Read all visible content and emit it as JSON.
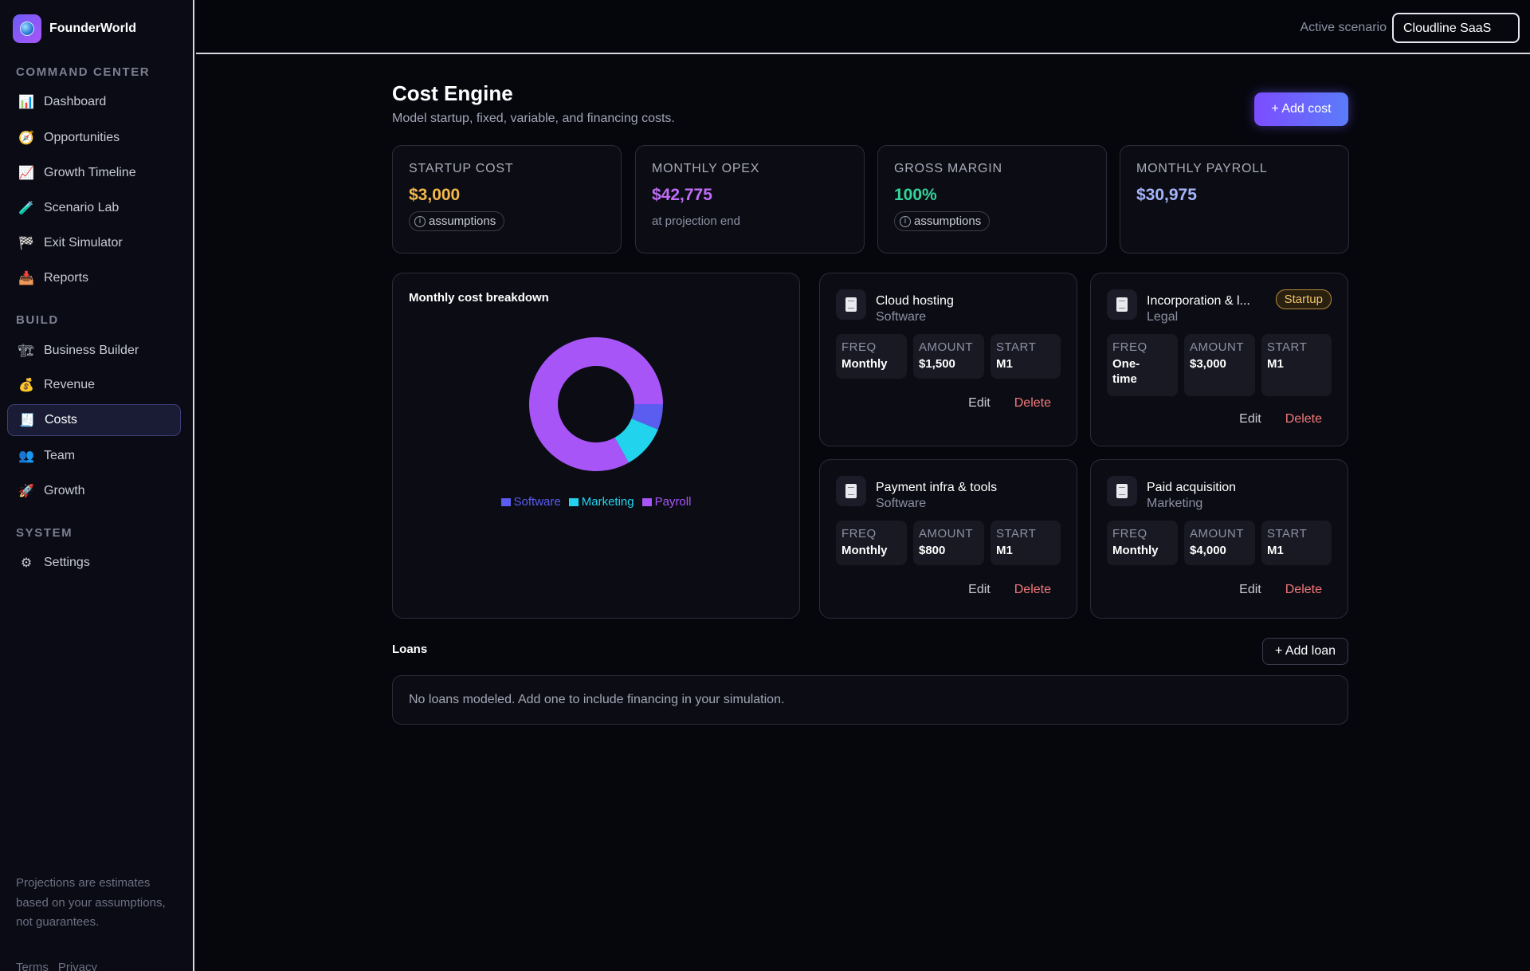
{
  "app": {
    "name": "FounderWorld"
  },
  "sidebar": {
    "sections": [
      {
        "title": "COMMAND CENTER",
        "items": [
          {
            "label": "Dashboard",
            "icon": "bar-chart-icon"
          },
          {
            "label": "Opportunities",
            "icon": "compass-icon"
          },
          {
            "label": "Growth Timeline",
            "icon": "trend-chart-icon"
          },
          {
            "label": "Scenario Lab",
            "icon": "test-tube-icon"
          },
          {
            "label": "Exit Simulator",
            "icon": "checkered-flag-icon"
          },
          {
            "label": "Reports",
            "icon": "inbox-tray-icon"
          }
        ]
      },
      {
        "title": "BUILD",
        "items": [
          {
            "label": "Business Builder",
            "icon": "crane-icon"
          },
          {
            "label": "Revenue",
            "icon": "money-bag-icon"
          },
          {
            "label": "Costs",
            "icon": "receipt-icon",
            "active": true
          },
          {
            "label": "Team",
            "icon": "people-icon"
          },
          {
            "label": "Growth",
            "icon": "rocket-icon"
          }
        ]
      },
      {
        "title": "SYSTEM",
        "items": [
          {
            "label": "Settings",
            "icon": "gear-icon"
          }
        ]
      }
    ],
    "disclaimer": "Projections are estimates based on your assumptions, not guarantees.",
    "links": [
      "Terms",
      "Privacy"
    ]
  },
  "topbar": {
    "scenario_label": "Active scenario",
    "scenario_value": "Cloudline SaaS"
  },
  "page": {
    "title": "Cost Engine",
    "subtitle": "Model startup, fixed, variable, and financing costs.",
    "add_cost_label": "+ Add cost"
  },
  "kpis": [
    {
      "label": "STARTUP COST",
      "value": "$3,000",
      "color": "#f5b84a",
      "pill": "assumptions"
    },
    {
      "label": "MONTHLY OPEX",
      "value": "$42,775",
      "color": "#c06cf7",
      "sub": "at projection end"
    },
    {
      "label": "GROSS MARGIN",
      "value": "100%",
      "color": "#34d399",
      "pill": "assumptions"
    },
    {
      "label": "MONTHLY PAYROLL",
      "value": "$30,975",
      "color": "#a5b4fc"
    }
  ],
  "breakdown": {
    "title": "Monthly cost breakdown",
    "chart_data": {
      "type": "pie",
      "categories": [
        "Software",
        "Marketing",
        "Payroll"
      ],
      "values": [
        2300,
        4000,
        30975
      ],
      "colors": [
        "#5b5cf0",
        "#22d3ee",
        "#a855f7"
      ]
    }
  },
  "metric_labels": {
    "freq": "FREQ",
    "amount": "AMOUNT",
    "start": "START"
  },
  "cost_items": [
    {
      "name": "Cloud hosting",
      "category": "Software",
      "freq": "Monthly",
      "amount": "$1,500",
      "start": "M1"
    },
    {
      "name": "Incorporation & l...",
      "category": "Legal",
      "badge": "Startup",
      "freq": "One-time",
      "amount": "$3,000",
      "start": "M1"
    },
    {
      "name": "Payment infra & tools",
      "category": "Software",
      "freq": "Monthly",
      "amount": "$800",
      "start": "M1"
    },
    {
      "name": "Paid acquisition",
      "category": "Marketing",
      "freq": "Monthly",
      "amount": "$4,000",
      "start": "M1"
    }
  ],
  "actions": {
    "edit": "Edit",
    "delete": "Delete"
  },
  "loans": {
    "title": "Loans",
    "add_label": "+ Add loan",
    "empty": "No loans modeled. Add one to include financing in your simulation."
  }
}
